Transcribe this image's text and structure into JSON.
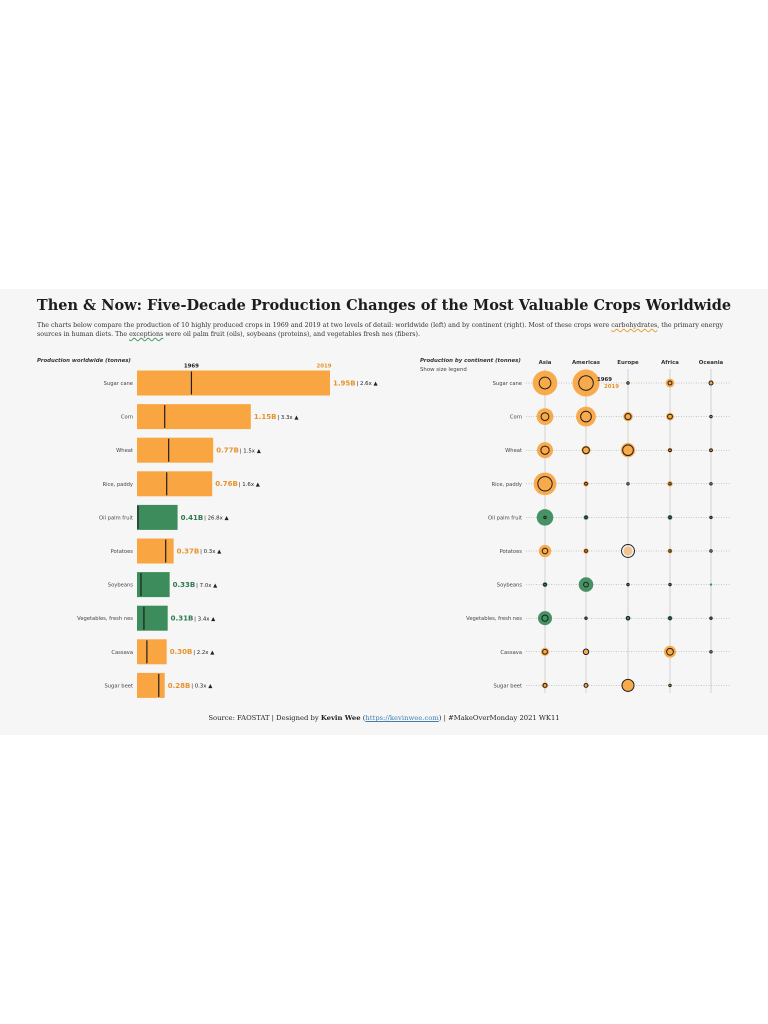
{
  "colors": {
    "carb": "#f9a642",
    "carb_text": "#e8922a",
    "other": "#3d8c5c",
    "other_text": "#2e7a4d",
    "marker": "#1e1e1e",
    "year2019": "#e8922a",
    "background": "#f6f6f6"
  },
  "header": {
    "title": "Then & Now: Five-Decade Production Changes of the Most Valuable Crops Worldwide",
    "subtitle_1": "The charts below compare the production of 10 highly produced crops in 1969 and 2019 at two levels of detail: worldwide (left) and by continent (right). Most of these crops were ",
    "subtitle_carb": "carbohydrates",
    "subtitle_2": ", the primary energy sources in human diets. The ",
    "subtitle_exc": "exceptions",
    "subtitle_3": " were oil palm fruit (oils), soybeans (proteins), and vegetables fresh nes (fibers)."
  },
  "left_chart": {
    "label": "Production worldwide (tonnes)",
    "year_1969_label": "1969",
    "year_2019_label": "2019"
  },
  "right_chart": {
    "label": "Production by continent (tonnes)",
    "size_legend": "Show size legend",
    "year_1969_label": "1969",
    "year_2019_label": "2019"
  },
  "footer": {
    "part1": "Source: FAOSTAT | Designed by ",
    "author": "Kevin Wee",
    "part2": " (",
    "link": "https://kevinwee.com",
    "part3": ") | #MakeOverMonday 2021 WK11"
  },
  "chart_data": [
    {
      "type": "bar",
      "title": "Production worldwide (tonnes)",
      "categories": [
        "Sugar cane",
        "Corn",
        "Wheat",
        "Rice, paddy",
        "Oil palm fruit",
        "Potatoes",
        "Soybeans",
        "Vegetables, fresh nes",
        "Cassava",
        "Sugar beet"
      ],
      "series": [
        {
          "name": "2019",
          "values": [
            1.95,
            1.15,
            0.77,
            0.76,
            0.41,
            0.37,
            0.33,
            0.31,
            0.3,
            0.28
          ]
        },
        {
          "name": "1969",
          "values": [
            0.55,
            0.28,
            0.32,
            0.3,
            0.01,
            0.29,
            0.04,
            0.07,
            0.1,
            0.22
          ]
        }
      ],
      "value_labels": [
        "1.95B",
        "1.15B",
        "0.77B",
        "0.76B",
        "0.41B",
        "0.37B",
        "0.33B",
        "0.31B",
        "0.30B",
        "0.28B"
      ],
      "change_labels": [
        "| 2.6x ▲",
        "| 3.3x ▲",
        "| 1.5x ▲",
        "| 1.6x ▲",
        "| 26.8x ▲",
        "| 0.3x ▲",
        "| 7.0x ▲",
        "| 3.4x ▲",
        "| 2.2x ▲",
        "| 0.3x ▲"
      ],
      "group": [
        "carb",
        "carb",
        "carb",
        "carb",
        "other",
        "carb",
        "other",
        "other",
        "carb",
        "carb"
      ],
      "units": "billion tonnes",
      "xlim": [
        0,
        1.95
      ]
    },
    {
      "type": "scatter",
      "title": "Production by continent (tonnes)",
      "columns": [
        "Asia",
        "Americas",
        "Europe",
        "Africa",
        "Oceania"
      ],
      "rows": [
        "Sugar cane",
        "Corn",
        "Wheat",
        "Rice, paddy",
        "Oil palm fruit",
        "Potatoes",
        "Soybeans",
        "Vegetables, fresh nes",
        "Cassava",
        "Sugar beet"
      ],
      "values_2019": [
        [
          0.8,
          0.96,
          0.002,
          0.1,
          0.03
        ],
        [
          0.37,
          0.52,
          0.12,
          0.08,
          0.0005
        ],
        [
          0.34,
          0.11,
          0.27,
          0.03,
          0.02
        ],
        [
          0.68,
          0.04,
          0.004,
          0.04,
          0.0001
        ],
        [
          0.36,
          0.03,
          0.0,
          0.03,
          0.0008
        ],
        [
          0.2,
          0.04,
          0.11,
          0.03,
          0.001
        ],
        [
          0.03,
          0.28,
          0.01,
          0.003,
          2e-05
        ],
        [
          0.26,
          0.01,
          0.03,
          0.03,
          0.001
        ],
        [
          0.09,
          0.03,
          0.0,
          0.19,
          0.0002
        ],
        [
          0.05,
          0.03,
          0.18,
          0.014,
          0.0
        ]
      ],
      "values_1969": [
        [
          0.18,
          0.28,
          0.002,
          0.02,
          0.02
        ],
        [
          0.08,
          0.15,
          0.05,
          0.03,
          0.0003
        ],
        [
          0.09,
          0.06,
          0.15,
          0.01,
          0.01
        ],
        [
          0.27,
          0.01,
          0.002,
          0.008,
          0.0001
        ],
        [
          0.004,
          0.0005,
          0.0,
          0.008,
          0.0001
        ],
        [
          0.04,
          0.01,
          0.22,
          0.002,
          0.001
        ],
        [
          0.01,
          0.03,
          0.0005,
          0.0001,
          0.0
        ],
        [
          0.05,
          0.005,
          0.015,
          0.005,
          0.0005
        ],
        [
          0.03,
          0.04,
          0.0,
          0.06,
          0.0002
        ],
        [
          0.02,
          0.02,
          0.19,
          0.0007,
          0.0
        ]
      ],
      "group": [
        "carb",
        "carb",
        "carb",
        "carb",
        "other",
        "carb",
        "other",
        "other",
        "carb",
        "carb"
      ],
      "units": "billion tonnes"
    }
  ]
}
